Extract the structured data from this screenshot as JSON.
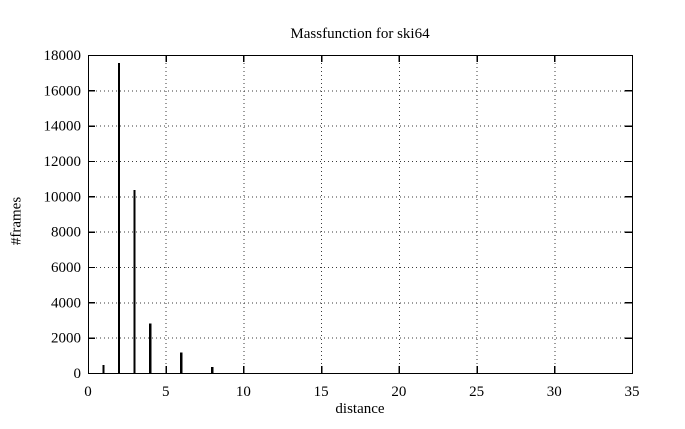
{
  "chart_data": {
    "type": "bar",
    "style": "impulses",
    "title": "Massfunction for ski64",
    "xlabel": "distance",
    "ylabel": "#frames",
    "x": [
      1,
      2,
      3,
      4,
      6,
      8
    ],
    "values": [
      450,
      17550,
      10350,
      2800,
      1150,
      350
    ],
    "xlim": [
      0,
      35
    ],
    "ylim": [
      0,
      18000
    ],
    "xticks": [
      0,
      5,
      10,
      15,
      20,
      25,
      30,
      35
    ],
    "yticks": [
      0,
      2000,
      4000,
      6000,
      8000,
      10000,
      12000,
      14000,
      16000,
      18000
    ],
    "grid": true,
    "legend": false,
    "series_color": "#000000",
    "grid_color": "#3a3a3a",
    "border_color": "#000000",
    "background": "#ffffff"
  }
}
